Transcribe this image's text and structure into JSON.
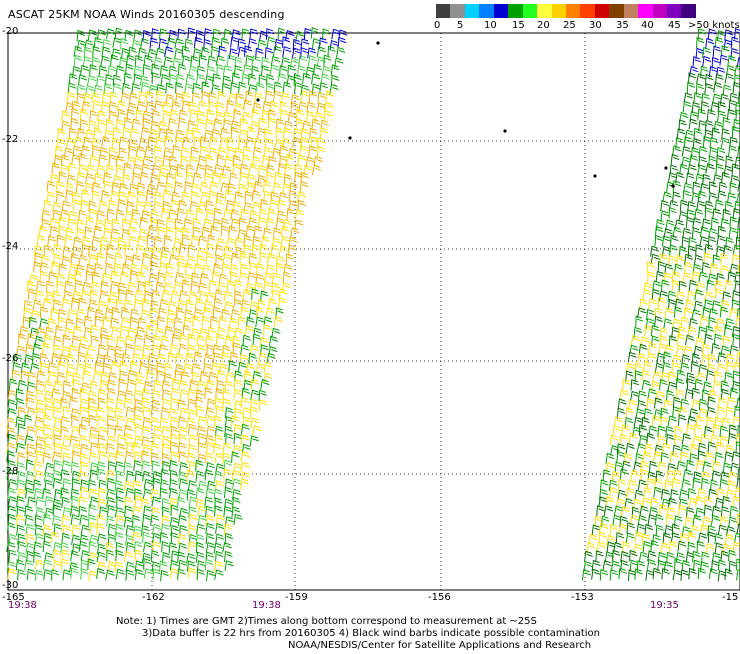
{
  "title": "ASCAT 25KM NOAA Winds 20160305 descending",
  "scale": {
    "colors": [
      "#404040",
      "#909090",
      "#00d0ff",
      "#0080ff",
      "#0000d0",
      "#00a000",
      "#20ff20",
      "#ffff40",
      "#ffd000",
      "#ff8000",
      "#ff4000",
      "#d00000",
      "#804000",
      "#c08060",
      "#ff00ff",
      "#c000c0",
      "#8000c0",
      "#400080"
    ],
    "labels": [
      "0",
      "5",
      "10",
      "15",
      "20",
      "25",
      "30",
      "35",
      "40",
      "45",
      ">50 knots"
    ]
  },
  "map": {
    "lat_labels": [
      "-20",
      "-22",
      "-24",
      "-26",
      "-28",
      "-30"
    ],
    "lon_labels": [
      "-165",
      "-162",
      "-159",
      "-156",
      "-153",
      "-15"
    ],
    "times": [
      "19:38",
      "19:38",
      "19:35"
    ],
    "wind_colors": {
      "yellow": "#ffe000",
      "orange": "#f0b000",
      "green": "#00a000",
      "darkgreen": "#007000",
      "lightgreen": "#40d040",
      "blue": "#0000d0"
    }
  },
  "notes": {
    "line1": "Note: 1) Times are GMT 2)Times along bottom correspond to measurement at ~25S",
    "line2": "3)Data buffer is 22 hrs from 20160305 4) Black wind barbs indicate possible contamination",
    "line3": "NOAA/NESDIS/Center for Satellite Applications and Research"
  }
}
